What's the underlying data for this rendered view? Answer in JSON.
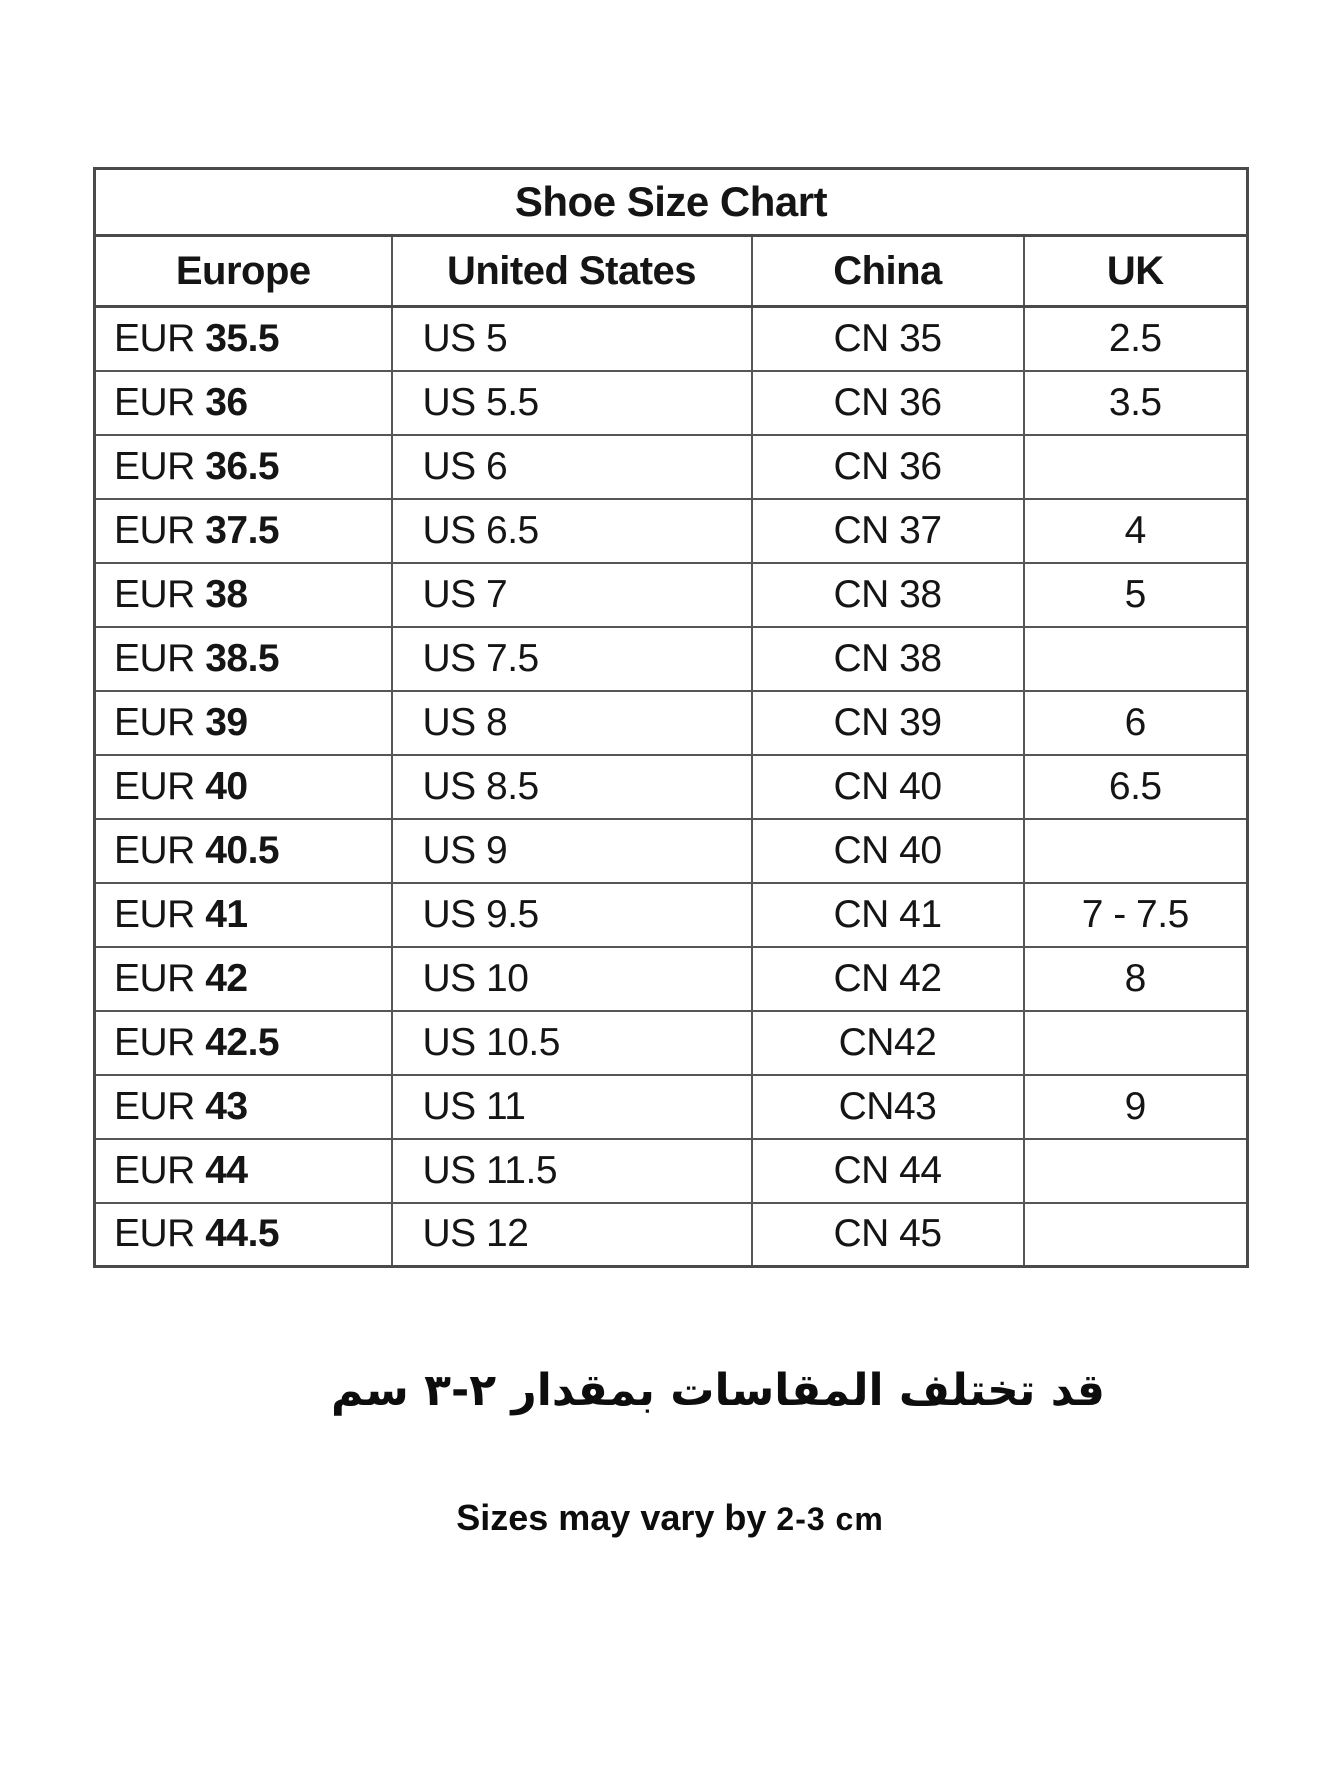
{
  "chart_data": {
    "type": "table",
    "title": "Shoe Size Chart",
    "columns": [
      "Europe",
      "United States",
      "China",
      "UK"
    ],
    "rows": [
      [
        "EUR 35.5",
        "US 5",
        "CN 35",
        "2.5"
      ],
      [
        "EUR 36",
        "US 5.5",
        "CN 36",
        "3.5"
      ],
      [
        "EUR 36.5",
        "US 6",
        "CN 36",
        ""
      ],
      [
        "EUR 37.5",
        "US 6.5",
        "CN 37",
        "4"
      ],
      [
        "EUR 38",
        "US 7",
        "CN 38",
        "5"
      ],
      [
        "EUR 38.5",
        "US 7.5",
        "CN 38",
        ""
      ],
      [
        "EUR 39",
        "US 8",
        "CN 39",
        "6"
      ],
      [
        "EUR 40",
        "US 8.5",
        "CN 40",
        "6.5"
      ],
      [
        "EUR 40.5",
        "US 9",
        "CN 40",
        ""
      ],
      [
        "EUR 41",
        "US 9.5",
        "CN 41",
        "7 - 7.5"
      ],
      [
        "EUR 42",
        "US 10",
        "CN 42",
        "8"
      ],
      [
        "EUR 42.5",
        "US 10.5",
        "CN42",
        ""
      ],
      [
        "EUR 43",
        "US 11",
        "CN43",
        "9"
      ],
      [
        "EUR 44",
        "US 11.5",
        "CN 44",
        ""
      ],
      [
        "EUR 44.5",
        "US 12",
        "CN 45",
        ""
      ]
    ]
  },
  "notes": {
    "arabic": "قد تختلف المقاسات بمقدار ٢-٣ سم",
    "english_main": "Sizes may vary by",
    "english_value": "2-3 cm"
  }
}
